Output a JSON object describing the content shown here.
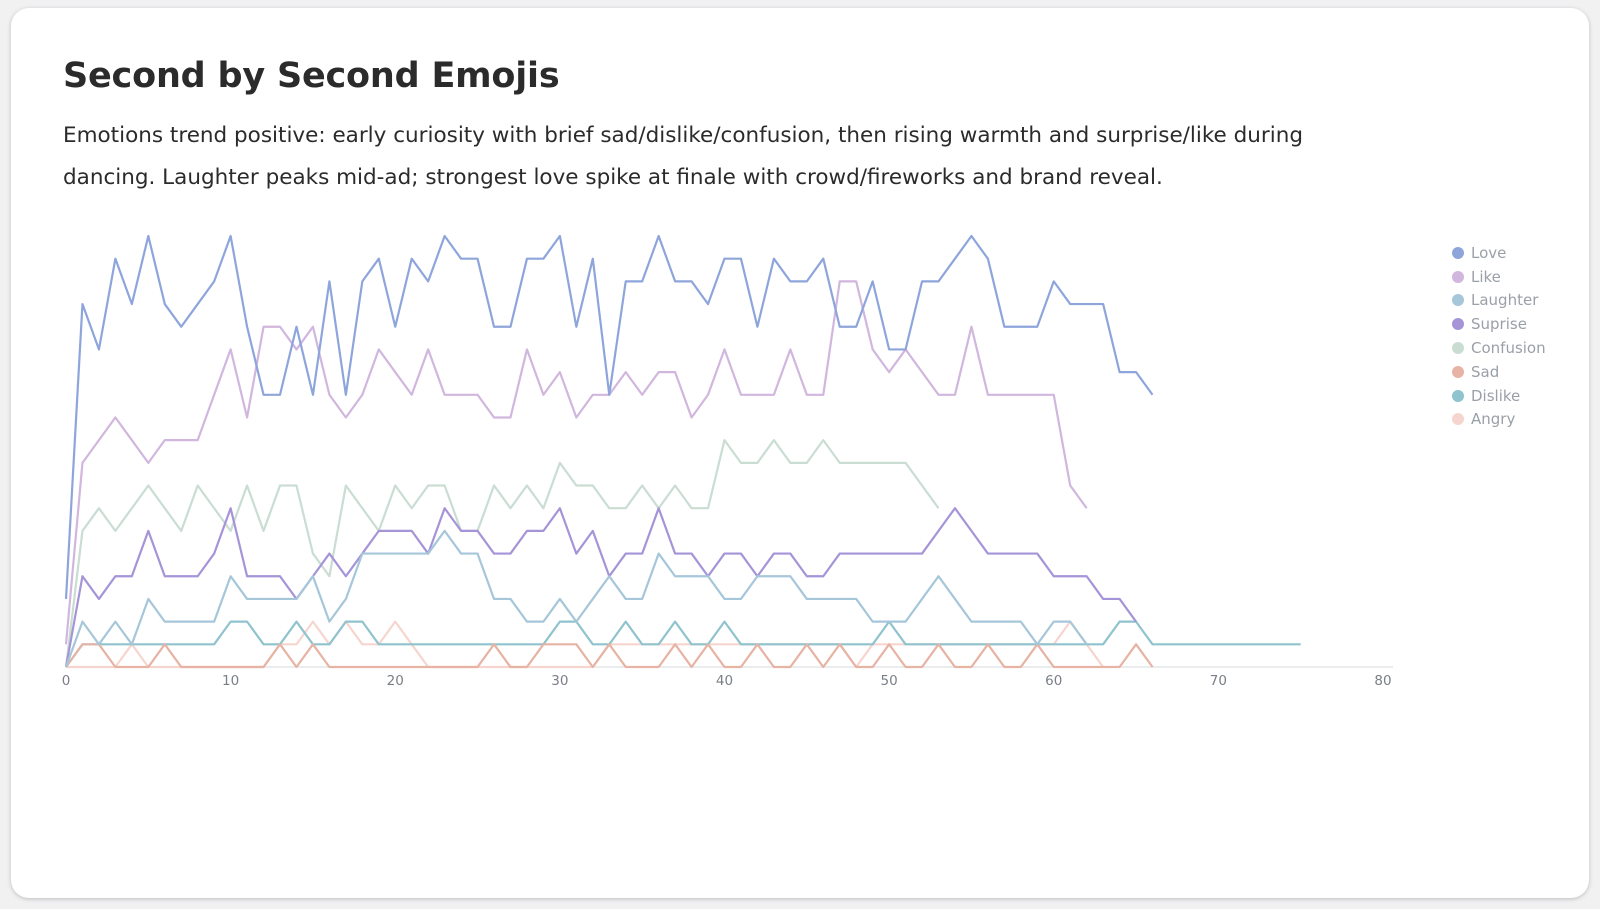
{
  "card": {
    "title": "Second by Second Emojis",
    "description": "Emotions trend positive: early curiosity with brief sad/dislike/confusion, then rising warmth and surprise/like during dancing. Laughter peaks mid-ad; strongest love spike at finale with crowd/fireworks and brand reveal."
  },
  "chart_data": {
    "type": "line",
    "title": "",
    "xlabel": "",
    "ylabel": "",
    "xlim": [
      0,
      80
    ],
    "ylim": [
      0,
      19
    ],
    "x_ticks": [
      0,
      10,
      20,
      30,
      40,
      50,
      60,
      70,
      80
    ],
    "grid": false,
    "legend_position": "right",
    "series": [
      {
        "name": "Love",
        "color": "#8ea5dc",
        "values": [
          3,
          16,
          14,
          18,
          16,
          19,
          16,
          15,
          16,
          17,
          19,
          15,
          12,
          12,
          15,
          12,
          17,
          12,
          17,
          18,
          15,
          18,
          17,
          19,
          18,
          18,
          15,
          15,
          18,
          18,
          19,
          15,
          18,
          12,
          17,
          17,
          19,
          17,
          17,
          16,
          18,
          18,
          15,
          18,
          17,
          17,
          18,
          15,
          15,
          17,
          14,
          14,
          17,
          17,
          18,
          19,
          18,
          15,
          15,
          15,
          17,
          16,
          16,
          16,
          13,
          13,
          12
        ]
      },
      {
        "name": "Like",
        "color": "#d1b6de",
        "values": [
          1,
          9,
          10,
          11,
          10,
          9,
          10,
          10,
          10,
          12,
          14,
          11,
          15,
          15,
          14,
          15,
          12,
          11,
          12,
          14,
          13,
          12,
          14,
          12,
          12,
          12,
          11,
          11,
          14,
          12,
          13,
          11,
          12,
          12,
          13,
          12,
          13,
          13,
          11,
          12,
          14,
          12,
          12,
          12,
          14,
          12,
          12,
          17,
          17,
          14,
          13,
          14,
          13,
          12,
          12,
          15,
          12,
          12,
          12,
          12,
          12,
          8,
          7
        ]
      },
      {
        "name": "Laughter",
        "color": "#a6c6da",
        "values": [
          0,
          2,
          1,
          2,
          1,
          3,
          2,
          2,
          2,
          2,
          4,
          3,
          3,
          3,
          3,
          4,
          2,
          3,
          5,
          5,
          5,
          5,
          5,
          6,
          5,
          5,
          3,
          3,
          2,
          2,
          3,
          2,
          3,
          4,
          3,
          3,
          5,
          4,
          4,
          4,
          3,
          3,
          4,
          4,
          4,
          3,
          3,
          3,
          3,
          2,
          2,
          2,
          3,
          4,
          3,
          2,
          2,
          2,
          2,
          1,
          2,
          2,
          1
        ]
      },
      {
        "name": "Suprise",
        "color": "#a594d8",
        "values": [
          0,
          4,
          3,
          4,
          4,
          6,
          4,
          4,
          4,
          5,
          7,
          4,
          4,
          4,
          3,
          4,
          5,
          4,
          5,
          6,
          6,
          6,
          5,
          7,
          6,
          6,
          5,
          5,
          6,
          6,
          7,
          5,
          6,
          4,
          5,
          5,
          7,
          5,
          5,
          4,
          5,
          5,
          4,
          5,
          5,
          4,
          4,
          5,
          5,
          5,
          5,
          5,
          5,
          6,
          7,
          6,
          5,
          5,
          5,
          5,
          4,
          4,
          4,
          3,
          3,
          2
        ]
      },
      {
        "name": "Confusion",
        "color": "#c9ddd2",
        "values": [
          0,
          6,
          7,
          6,
          7,
          8,
          7,
          6,
          8,
          7,
          6,
          8,
          6,
          8,
          8,
          5,
          4,
          8,
          7,
          6,
          8,
          7,
          8,
          8,
          6,
          6,
          8,
          7,
          8,
          7,
          9,
          8,
          8,
          7,
          7,
          8,
          7,
          8,
          7,
          7,
          10,
          9,
          9,
          10,
          9,
          9,
          10,
          9,
          9,
          9,
          9,
          9,
          8,
          7
        ]
      },
      {
        "name": "Sad",
        "color": "#e6b3a4",
        "values": [
          0,
          1,
          1,
          0,
          0,
          0,
          1,
          0,
          0,
          0,
          0,
          0,
          0,
          1,
          0,
          1,
          0,
          0,
          0,
          0,
          0,
          0,
          0,
          0,
          0,
          0,
          1,
          0,
          0,
          1,
          1,
          1,
          0,
          1,
          0,
          0,
          0,
          1,
          0,
          1,
          0,
          0,
          1,
          0,
          0,
          1,
          0,
          1,
          0,
          0,
          1,
          0,
          0,
          1,
          0,
          0,
          1,
          0,
          0,
          1,
          0,
          0,
          0,
          0,
          0,
          1,
          0
        ]
      },
      {
        "name": "Dislike",
        "color": "#8fc3cd",
        "values": [
          0,
          1,
          1,
          1,
          1,
          1,
          1,
          1,
          1,
          1,
          2,
          2,
          1,
          1,
          2,
          1,
          1,
          2,
          2,
          1,
          1,
          1,
          1,
          1,
          1,
          1,
          1,
          1,
          1,
          1,
          2,
          2,
          1,
          1,
          2,
          1,
          1,
          2,
          1,
          1,
          2,
          1,
          1,
          1,
          1,
          1,
          1,
          1,
          1,
          1,
          2,
          1,
          1,
          1,
          1,
          1,
          1,
          1,
          1,
          1,
          1,
          1,
          1,
          1,
          2,
          2,
          1,
          1,
          1,
          1,
          1,
          1,
          1,
          1,
          1,
          1
        ]
      },
      {
        "name": "Angry",
        "color": "#f6d5cf",
        "values": [
          0,
          0,
          0,
          0,
          1,
          0,
          0,
          0,
          0,
          0,
          0,
          0,
          0,
          1,
          1,
          2,
          1,
          2,
          1,
          1,
          2,
          1,
          0,
          0,
          0,
          0,
          0,
          0,
          0,
          0,
          0,
          0,
          0,
          1,
          1,
          1,
          1,
          1,
          1,
          1,
          1,
          1,
          1,
          1,
          1,
          1,
          1,
          1,
          0,
          1,
          1,
          1,
          1,
          1,
          1,
          1,
          1,
          1,
          1,
          1,
          1,
          2,
          1,
          0
        ]
      }
    ]
  }
}
